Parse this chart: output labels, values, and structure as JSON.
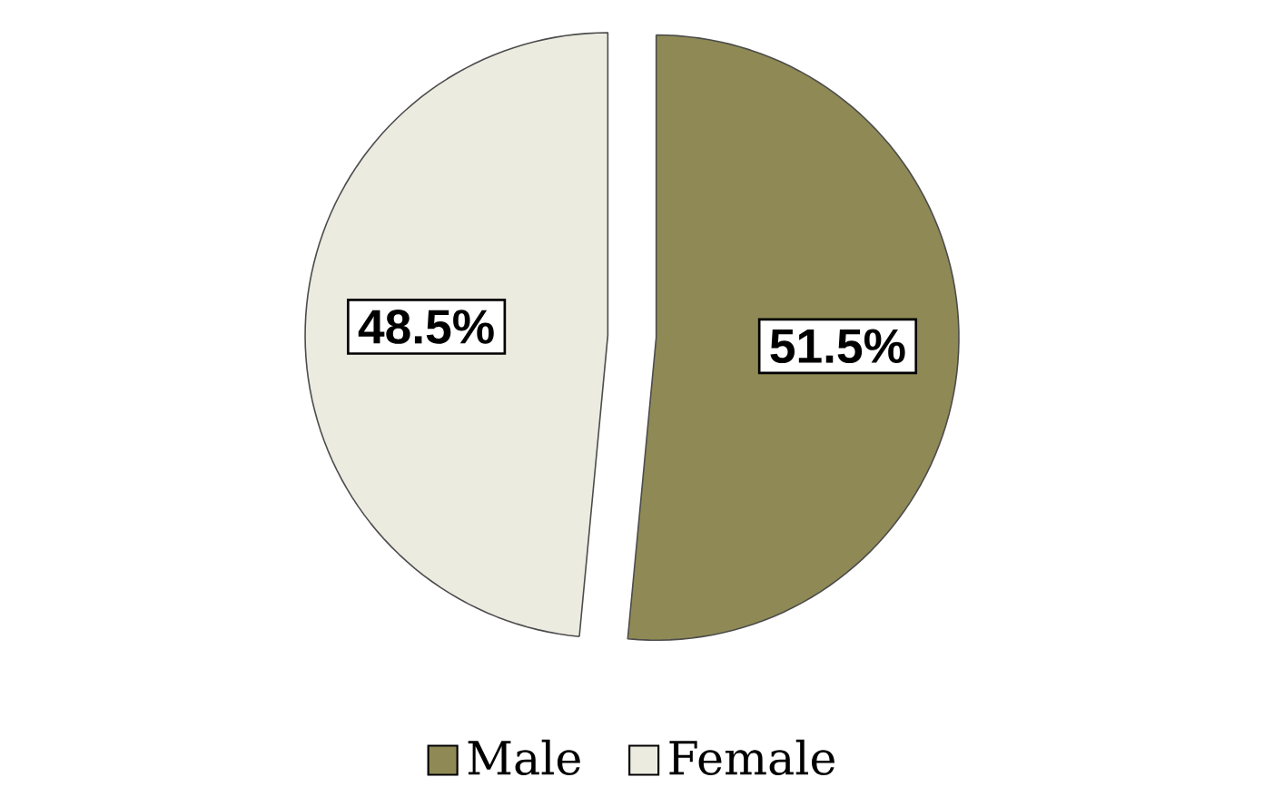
{
  "chart_data": {
    "type": "pie",
    "categories": [
      "Male",
      "Female"
    ],
    "values": [
      51.5,
      48.5
    ],
    "colors": [
      "#8f8a55",
      "#ecebe0"
    ],
    "value_labels": [
      "51.5%",
      "48.5%"
    ],
    "legend": "bottom"
  }
}
